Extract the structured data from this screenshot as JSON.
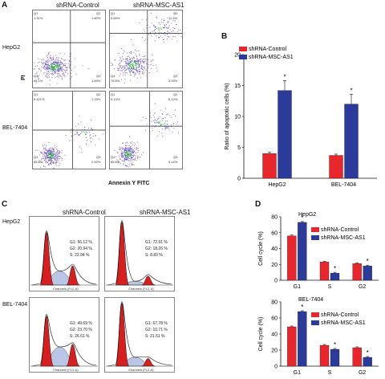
{
  "panels": {
    "A": {
      "letter": "A",
      "col_headers": [
        "shRNA-Control",
        "shRNA-MSC-AS1"
      ],
      "row_labels": [
        "HepG2",
        "BEL-7404"
      ],
      "y_axis": "PI",
      "x_axis": "Annexin Y FITC",
      "plots": [
        {
          "name": "hepg2-control",
          "q1": "Q1",
          "q1v": "1.31%",
          "q2": "Q2",
          "q2v": "1.60%",
          "q3": "Q3",
          "q3v": "1.89%",
          "q4": "Q4",
          "q4v": "95.1%"
        },
        {
          "name": "hepg2-msc",
          "q1": "Q1",
          "q1v": "5.84%",
          "q2": "Q2",
          "q2v": "11.5%",
          "q3": "Q3",
          "q3v": "3.93%",
          "q4": "Q4",
          "q4v": "78.8%"
        },
        {
          "name": "bel-control",
          "q1": "Q1",
          "q1v": "8.421%",
          "q2": "Q2",
          "q2v": "1.23%",
          "q3": "Q3",
          "q3v": "2.52%",
          "q4": "Q4",
          "q4v": "85.8%"
        },
        {
          "name": "bel-msc",
          "q1": "Q1",
          "q1v": "3.12%",
          "q2": "Q2",
          "q2v": "6.12%",
          "q3": "Q3",
          "q3v": "5.14%",
          "q4": "Q4",
          "q4v": "85.6%"
        }
      ]
    },
    "B": {
      "letter": "B"
    },
    "C": {
      "letter": "C",
      "col_headers": [
        "shRNA-Control",
        "shRNA-MSC-AS1"
      ],
      "row_labels": [
        "HepG2",
        "BEL-7404"
      ],
      "x_axis_label": "Channels (FL2-A)",
      "stats": [
        {
          "g1": "G1: 56.12 %",
          "g2": "G2: 20.94 %",
          "s": "S: 22.94 %"
        },
        {
          "g1": "G1: 72.91 %",
          "g2": "G2: 18.26 %",
          "s": "S: 8.83 %"
        },
        {
          "g1": "G1: 49.69 %",
          "g2": "G2: 23.70 %",
          "s": "S: 26.61 %"
        },
        {
          "g1": "G1: 67.78 %",
          "g2": "G2: 10.71 %",
          "s": "S: 21.51 %"
        }
      ]
    },
    "D": {
      "letter": "D"
    }
  },
  "colors": {
    "control": "#e8262b",
    "msc": "#2b3b9b"
  },
  "chart_data": [
    {
      "type": "bar",
      "categories": [
        "HepG2",
        "BEL-7404"
      ],
      "series": [
        {
          "name": "shRNA-Control",
          "values": [
            4.0,
            3.7
          ]
        },
        {
          "name": "shRNA-MSC-AS1",
          "values": [
            14.2,
            12.0
          ]
        }
      ],
      "errors": [
        [
          0.2,
          0.2
        ],
        [
          1.6,
          1.6
        ]
      ],
      "significance": [
        "*",
        "*"
      ],
      "ylabel": "Ratio of apoptotic cells (%)",
      "ylim": [
        0,
        20
      ],
      "yticks": [
        "0",
        "5",
        "10",
        "15",
        "20"
      ],
      "legend": "top-left"
    },
    {
      "type": "bar",
      "title": "HepG2",
      "categories": [
        "G1",
        "S",
        "G2"
      ],
      "series": [
        {
          "name": "shRNA-Control",
          "values": [
            56,
            23,
            21
          ]
        },
        {
          "name": "shRNA-MSC-AS1",
          "values": [
            73,
            9,
            18
          ]
        }
      ],
      "errors": [
        [
          1,
          1,
          1
        ],
        [
          1,
          1,
          1
        ]
      ],
      "significance": [
        "*",
        "*",
        "*"
      ],
      "ylabel": "Cell cycle (%)",
      "ylim": [
        0,
        80
      ],
      "yticks": [
        "0",
        "20",
        "40",
        "60",
        "80"
      ],
      "legend": "top-right"
    },
    {
      "type": "bar",
      "title": "BEL-7404",
      "categories": [
        "G1",
        "S",
        "G2"
      ],
      "series": [
        {
          "name": "shRNA-Control",
          "values": [
            49,
            26,
            23
          ]
        },
        {
          "name": "shRNA-MSC-AS1",
          "values": [
            68,
            21,
            11
          ]
        }
      ],
      "errors": [
        [
          1,
          1,
          1
        ],
        [
          1,
          1,
          1
        ]
      ],
      "significance": [
        "*",
        "*",
        "*"
      ],
      "ylabel": "Cell cycle (%)",
      "ylim": [
        0,
        80
      ],
      "yticks": [
        "0",
        "20",
        "40",
        "60",
        "80"
      ],
      "legend": "top-right"
    }
  ]
}
